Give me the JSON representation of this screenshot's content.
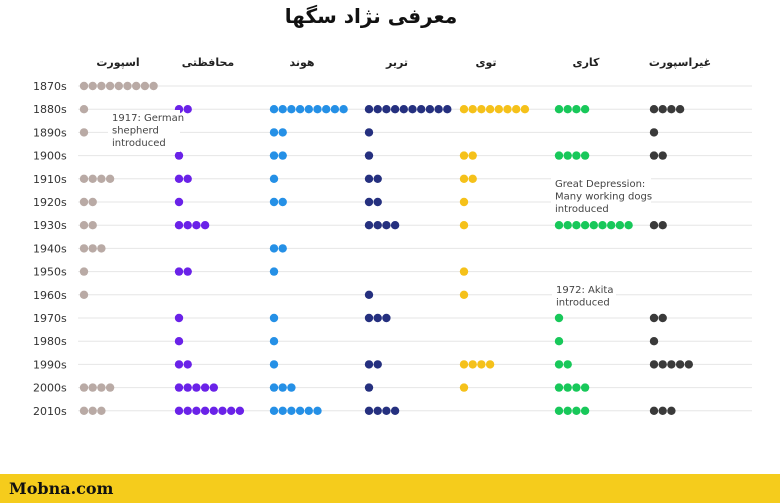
{
  "chart_data": {
    "type": "scatter",
    "title": "معرفی نژاد سگها",
    "categories": [
      "اسپورت",
      "محافظتی",
      "هوند",
      "تریر",
      "توی",
      "کاری",
      "غیراسپورت"
    ],
    "decades": [
      "1870s",
      "1880s",
      "1890s",
      "1900s",
      "1910s",
      "1920s",
      "1930s",
      "1940s",
      "1950s",
      "1960s",
      "1970s",
      "1980s",
      "1990s",
      "2000s",
      "2010s"
    ],
    "series": [
      {
        "name": "اسپورت",
        "color": "#b9aaa5",
        "values": [
          9,
          1,
          1,
          0,
          4,
          2,
          2,
          3,
          1,
          1,
          0,
          0,
          0,
          4,
          3
        ]
      },
      {
        "name": "محافظتی",
        "color": "#6a22e8",
        "values": [
          0,
          2,
          0,
          1,
          2,
          1,
          4,
          0,
          2,
          0,
          1,
          1,
          2,
          5,
          8
        ]
      },
      {
        "name": "هوند",
        "color": "#2590e6",
        "values": [
          0,
          9,
          2,
          2,
          1,
          2,
          0,
          2,
          1,
          0,
          1,
          1,
          1,
          3,
          6
        ]
      },
      {
        "name": "تریر",
        "color": "#25307f",
        "values": [
          0,
          10,
          1,
          1,
          2,
          2,
          4,
          0,
          0,
          1,
          3,
          0,
          2,
          1,
          4
        ]
      },
      {
        "name": "توی",
        "color": "#f5c11a",
        "values": [
          0,
          8,
          0,
          2,
          2,
          1,
          1,
          0,
          1,
          1,
          0,
          0,
          4,
          1,
          0
        ]
      },
      {
        "name": "کاری",
        "color": "#18c85a",
        "values": [
          0,
          4,
          0,
          4,
          0,
          0,
          9,
          0,
          0,
          0,
          1,
          1,
          2,
          4,
          4
        ]
      },
      {
        "name": "غیراسپورت",
        "color": "#3a3a3a",
        "values": [
          0,
          4,
          1,
          2,
          0,
          0,
          2,
          0,
          0,
          0,
          2,
          1,
          5,
          0,
          3
        ]
      }
    ],
    "annotations": [
      {
        "text": "1917: German shepherd introduced",
        "lines": [
          "1917: German",
          "shepherd",
          "introduced"
        ]
      },
      {
        "text": "Great Depression: Many working dogs introduced",
        "lines": [
          "Great Depression:",
          "Many working dogs",
          "introduced"
        ]
      },
      {
        "text": "1972: Akita introduced",
        "lines": [
          "1972: Akita",
          "introduced"
        ]
      }
    ],
    "grid": true,
    "legend": "none"
  },
  "footer": {
    "brand": "Mobna.com"
  }
}
